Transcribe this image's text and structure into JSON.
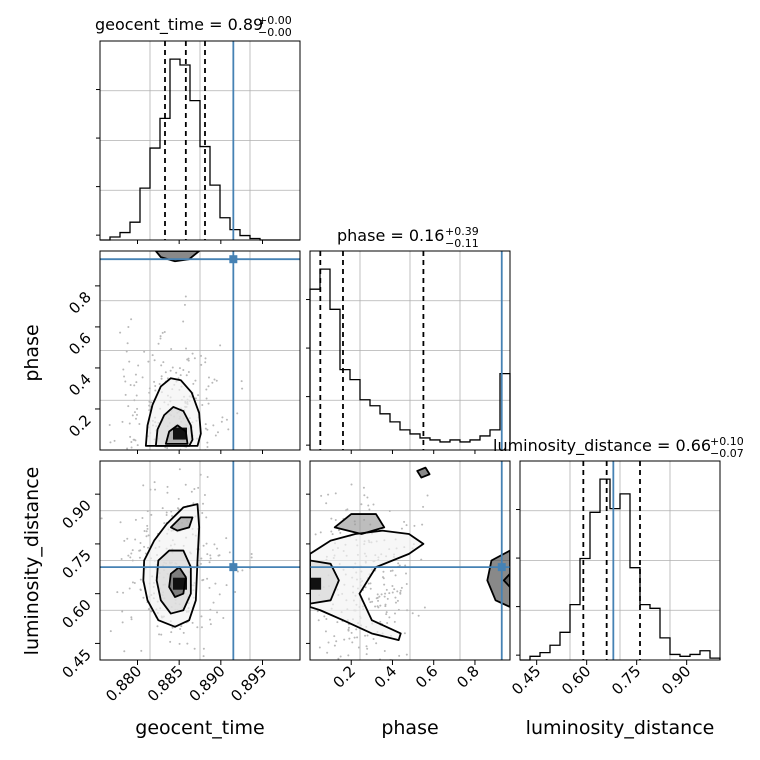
{
  "chart_data": {
    "type": "corner",
    "parameters": [
      "geocent_time",
      "phase",
      "luminosity_distance"
    ],
    "truth_color": "#4682b4",
    "truths": {
      "geocent_time": 0.8915,
      "phase": 0.93,
      "luminosity_distance": 0.68
    },
    "ranges": {
      "geocent_time": [
        0.8755,
        0.8995
      ],
      "phase": [
        0.0,
        0.97
      ],
      "luminosity_distance": [
        0.4,
        1.0
      ]
    },
    "axis_labels": {
      "geocent_time": "geocent_time",
      "phase": "phase",
      "luminosity_distance": "luminosity_distance"
    },
    "ticks": {
      "geocent_time": [
        "0.880",
        "0.885",
        "0.890",
        "0.895"
      ],
      "geocent_time_values": [
        0.88,
        0.885,
        0.89,
        0.895
      ],
      "phase": [
        "0.2",
        "0.4",
        "0.6",
        "0.8"
      ],
      "phase_values": [
        0.2,
        0.4,
        0.6,
        0.8
      ],
      "luminosity_distance": [
        "0.45",
        "0.60",
        "0.75",
        "0.90"
      ],
      "luminosity_distance_values": [
        0.45,
        0.6,
        0.75,
        0.9
      ]
    },
    "titles": {
      "geocent_time": {
        "text": "geocent_time = 0.89",
        "plus": "+0.00",
        "minus": "−0.00"
      },
      "phase": {
        "text": "phase = 0.16",
        "plus": "+0.39",
        "minus": "−0.11"
      },
      "luminosity_distance": {
        "text": "luminosity_distance = 0.66",
        "plus": "+0.10",
        "minus": "−0.07"
      }
    },
    "histograms": {
      "geocent_time": {
        "bin_edges": [
          0.8755,
          0.8767,
          0.8779,
          0.8791,
          0.8803,
          0.8815,
          0.8827,
          0.8839,
          0.8851,
          0.8863,
          0.8875,
          0.8887,
          0.8899,
          0.8911,
          0.8923,
          0.8935,
          0.8947,
          0.8959,
          0.8971,
          0.8983,
          0.8995
        ],
        "counts": [
          0,
          2,
          5,
          12,
          35,
          62,
          82,
          122,
          118,
          94,
          63,
          37,
          15,
          7,
          3,
          1,
          0,
          0,
          0,
          0
        ],
        "quantiles": [
          0.8833,
          0.8858,
          0.8881
        ]
      },
      "phase": {
        "bin_edges": [
          0.0,
          0.0485,
          0.097,
          0.1455,
          0.194,
          0.2425,
          0.291,
          0.3395,
          0.388,
          0.4365,
          0.485,
          0.5335,
          0.582,
          0.6305,
          0.679,
          0.7275,
          0.776,
          0.8245,
          0.873,
          0.9215,
          0.97
        ],
        "counts": [
          80,
          90,
          70,
          40,
          35,
          25,
          22,
          18,
          14,
          10,
          8,
          6,
          5,
          4,
          5,
          4,
          5,
          7,
          10,
          38
        ],
        "quantiles": [
          0.05,
          0.16,
          0.55
        ]
      },
      "luminosity_distance": {
        "bin_edges": [
          0.4,
          0.43,
          0.46,
          0.49,
          0.52,
          0.55,
          0.58,
          0.61,
          0.64,
          0.67,
          0.7,
          0.73,
          0.76,
          0.79,
          0.82,
          0.85,
          0.88,
          0.91,
          0.94,
          0.97,
          1.0
        ],
        "counts": [
          0,
          2,
          4,
          8,
          15,
          30,
          55,
          80,
          98,
          82,
          90,
          50,
          30,
          28,
          12,
          3,
          2,
          3,
          5,
          1
        ],
        "quantiles": [
          0.59,
          0.66,
          0.76
        ]
      }
    },
    "pairs": [
      {
        "x": "geocent_time",
        "y": "phase",
        "contours": [
          [
            [
              0.881,
              0.02
            ],
            [
              0.8812,
              0.12
            ],
            [
              0.8818,
              0.22
            ],
            [
              0.8828,
              0.31
            ],
            [
              0.884,
              0.35
            ],
            [
              0.8852,
              0.34
            ],
            [
              0.8865,
              0.28
            ],
            [
              0.8874,
              0.18
            ],
            [
              0.8876,
              0.08
            ],
            [
              0.8872,
              0.02
            ]
          ],
          [
            [
              0.8822,
              0.02
            ],
            [
              0.8824,
              0.1
            ],
            [
              0.8832,
              0.17
            ],
            [
              0.8843,
              0.21
            ],
            [
              0.8855,
              0.19
            ],
            [
              0.8864,
              0.12
            ],
            [
              0.8866,
              0.05
            ],
            [
              0.8862,
              0.02
            ]
          ],
          [
            [
              0.8834,
              0.03
            ],
            [
              0.8838,
              0.09
            ],
            [
              0.8848,
              0.12
            ],
            [
              0.8858,
              0.09
            ],
            [
              0.886,
              0.03
            ]
          ],
          [
            [
              0.8822,
              0.97
            ],
            [
              0.8828,
              0.94
            ],
            [
              0.8845,
              0.92
            ],
            [
              0.8862,
              0.93
            ],
            [
              0.8874,
              0.97
            ]
          ]
        ],
        "peak": [
          0.8851,
          0.08
        ]
      },
      {
        "x": "geocent_time",
        "y": "luminosity_distance",
        "contours": [
          [
            [
              0.8808,
              0.7
            ],
            [
              0.882,
              0.76
            ],
            [
              0.8835,
              0.81
            ],
            [
              0.8855,
              0.86
            ],
            [
              0.8872,
              0.87
            ],
            [
              0.8874,
              0.8
            ],
            [
              0.8872,
              0.7
            ],
            [
              0.887,
              0.58
            ],
            [
              0.8862,
              0.52
            ],
            [
              0.8845,
              0.5
            ],
            [
              0.8825,
              0.52
            ],
            [
              0.8812,
              0.58
            ],
            [
              0.8807,
              0.64
            ]
          ],
          [
            [
              0.8825,
              0.7
            ],
            [
              0.8838,
              0.73
            ],
            [
              0.8855,
              0.73
            ],
            [
              0.8864,
              0.68
            ],
            [
              0.8864,
              0.6
            ],
            [
              0.8855,
              0.55
            ],
            [
              0.884,
              0.54
            ],
            [
              0.8828,
              0.58
            ],
            [
              0.8823,
              0.64
            ]
          ],
          [
            [
              0.884,
              0.8
            ],
            [
              0.8852,
              0.83
            ],
            [
              0.8866,
              0.83
            ],
            [
              0.8862,
              0.8
            ],
            [
              0.8848,
              0.79
            ]
          ],
          [
            [
              0.884,
              0.66
            ],
            [
              0.885,
              0.68
            ],
            [
              0.8858,
              0.65
            ],
            [
              0.8855,
              0.6
            ],
            [
              0.8845,
              0.59
            ],
            [
              0.8838,
              0.62
            ]
          ]
        ],
        "peak": [
          0.8851,
          0.63
        ]
      },
      {
        "x": "phase",
        "y": "luminosity_distance",
        "contours": [
          [
            [
              0.0,
              0.72
            ],
            [
              0.1,
              0.76
            ],
            [
              0.22,
              0.78
            ],
            [
              0.35,
              0.79
            ],
            [
              0.48,
              0.78
            ],
            [
              0.55,
              0.75
            ],
            [
              0.48,
              0.72
            ],
            [
              0.32,
              0.68
            ],
            [
              0.24,
              0.6
            ],
            [
              0.3,
              0.52
            ],
            [
              0.44,
              0.48
            ],
            [
              0.43,
              0.46
            ],
            [
              0.3,
              0.48
            ],
            [
              0.16,
              0.52
            ],
            [
              0.05,
              0.55
            ],
            [
              0.0,
              0.56
            ]
          ],
          [
            [
              0.0,
              0.7
            ],
            [
              0.1,
              0.69
            ],
            [
              0.14,
              0.64
            ],
            [
              0.1,
              0.58
            ],
            [
              0.0,
              0.57
            ]
          ],
          [
            [
              0.12,
              0.8
            ],
            [
              0.2,
              0.84
            ],
            [
              0.32,
              0.84
            ],
            [
              0.36,
              0.8
            ],
            [
              0.25,
              0.78
            ]
          ],
          [
            [
              0.52,
              0.97
            ],
            [
              0.56,
              0.98
            ],
            [
              0.58,
              0.96
            ],
            [
              0.54,
              0.95
            ]
          ],
          [
            [
              0.97,
              0.73
            ],
            [
              0.88,
              0.7
            ],
            [
              0.86,
              0.64
            ],
            [
              0.9,
              0.58
            ],
            [
              0.97,
              0.56
            ]
          ],
          [
            [
              0.97,
              0.66
            ],
            [
              0.94,
              0.64
            ],
            [
              0.97,
              0.62
            ]
          ]
        ],
        "peak": [
          0.02,
          0.63
        ]
      }
    ]
  }
}
